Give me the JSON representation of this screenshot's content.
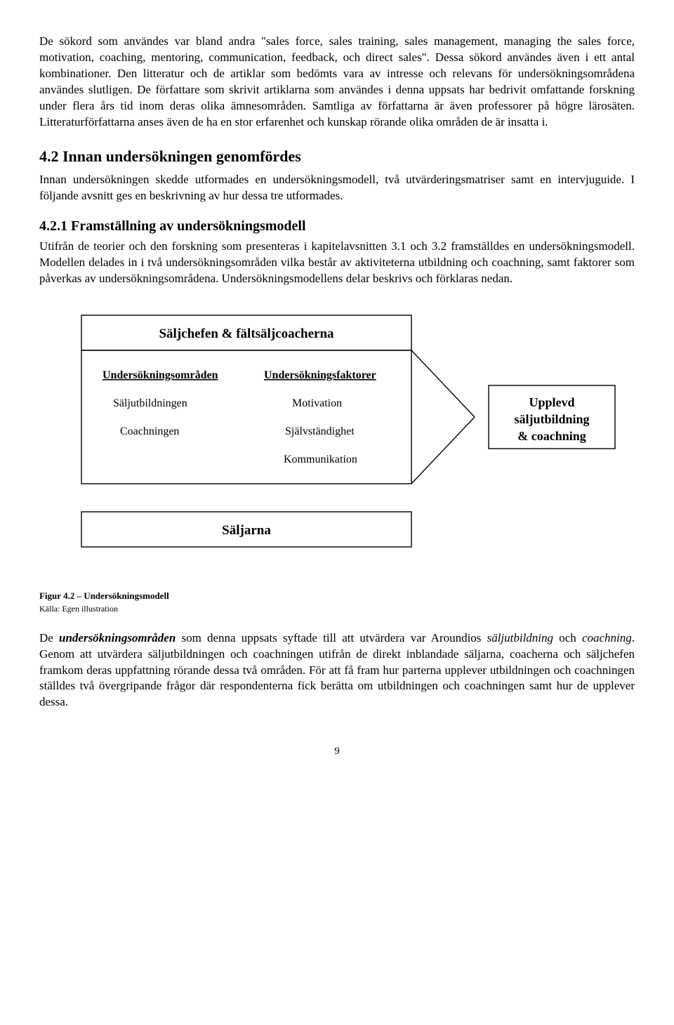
{
  "para1": "De sökord som användes var bland andra \"sales force, sales training, sales management, managing the sales force, motivation, coaching, mentoring, communication, feedback, och direct sales\". Dessa sökord användes även i ett antal kombinationer. Den litteratur och de artiklar som bedömts vara av intresse och relevans för undersökningsområdena användes slutligen. De författare som skrivit artiklarna som användes i denna uppsats har bedrivit omfattande forskning under flera års tid inom deras olika ämnesområden. Samtliga av författarna är även professorer på högre lärosäten. Litteraturförfattarna anses även de ha en stor erfarenhet och kunskap rörande olika områden de är insatta i.",
  "h2": "4.2 Innan undersökningen genomfördes",
  "para2": "Innan undersökningen skedde utformades en undersökningsmodell, två utvärderingsmatriser samt en intervjuguide. I följande avsnitt ges en beskrivning av hur dessa tre utformades.",
  "h3": "4.2.1 Framställning av undersökningsmodell",
  "para3": "Utifrån de teorier och den forskning som presenteras i kapitelavsnitten 3.1 och 3.2 framställdes en undersökningsmodell. Modellen delades in i två undersökningsområden vilka består av aktiviteterna utbildning och coachning, samt faktorer som påverkas av undersökningsområdena. Undersökningsmodellens delar beskrivs och förklaras nedan.",
  "diagram": {
    "topBox": "Säljchefen & fältsäljcoacherna",
    "leftHeader": "Undersökningsområden",
    "leftItems": [
      "Säljutbildningen",
      "Coachningen"
    ],
    "rightHeader": "Undersökningsfaktorer",
    "rightItems": [
      "Motivation",
      "Självständighet",
      "Kommunikation"
    ],
    "bottomBox": "Säljarna",
    "resultBox": [
      "Upplevd",
      "säljutbildning",
      "& coachning"
    ],
    "colors": {
      "stroke": "#000000",
      "fill": "#ffffff"
    },
    "lineWidth": 1.4
  },
  "caption_bold": "Figur 4.2 – Undersökningsmodell",
  "source": "Källa: Egen illustration",
  "para4_html": "De <b><i>undersökningsområden</i></b> som denna uppsats syftade till att utvärdera var Aroundios <i>säljutbildning</i> och <i>coachning</i>. Genom att utvärdera säljutbildningen och coachningen utifrån de direkt inblandade säljarna, coacherna och säljchefen framkom deras uppfattning rörande dessa två områden. För att få fram hur parterna upplever utbildningen och coachningen ställdes två övergripande frågor där respondenterna fick berätta om utbildningen och coachningen samt hur de upplever dessa.",
  "pageNumber": "9"
}
